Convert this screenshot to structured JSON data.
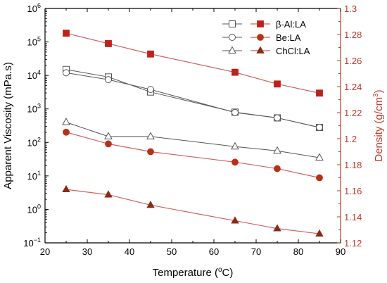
{
  "chart_data": {
    "type": "line",
    "xlabel": "Temperature (",
    "xlabel_sup": "o",
    "xlabel_tail": "C)",
    "ylabel_left": "Apparent Viscosity (mPa.s)",
    "ylabel_right_main": "Density (g/cm",
    "ylabel_right_sup": "3",
    "ylabel_right_tail": ")",
    "xlim": [
      20,
      90
    ],
    "x_ticks": [
      "20",
      "30",
      "40",
      "50",
      "60",
      "70",
      "80",
      "90"
    ],
    "ylim_left_log10": [
      -1,
      6
    ],
    "y_scale_left": "log",
    "y_ticks_left": [
      {
        "base": "10",
        "exp": "−1"
      },
      {
        "base": "10",
        "exp": "0"
      },
      {
        "base": "10",
        "exp": "1"
      },
      {
        "base": "10",
        "exp": "2"
      },
      {
        "base": "10",
        "exp": "3"
      },
      {
        "base": "10",
        "exp": "4"
      },
      {
        "base": "10",
        "exp": "5"
      },
      {
        "base": "10",
        "exp": "6"
      }
    ],
    "ylim_right": [
      1.12,
      1.3
    ],
    "y_ticks_right": [
      "1.12",
      "1.14",
      "1.16",
      "1.18",
      "1.2",
      "1.22",
      "1.24",
      "1.26",
      "1.28",
      "1.3"
    ],
    "grid": false,
    "legend_position": "top-right",
    "x": [
      25,
      35,
      45,
      65,
      75,
      85
    ],
    "viscosity_series": [
      {
        "name_ref": 0,
        "marker": "square",
        "values": [
          15000,
          9000,
          3200,
          800,
          540,
          280
        ]
      },
      {
        "name_ref": 1,
        "marker": "circle",
        "values": [
          12000,
          7500,
          3800,
          780,
          540,
          280
        ]
      },
      {
        "name_ref": 2,
        "marker": "triangle",
        "values": [
          400,
          150,
          150,
          75,
          56,
          35
        ]
      }
    ],
    "density_series": [
      {
        "name_ref": 0,
        "marker": "square",
        "values": [
          1.281,
          1.273,
          1.265,
          1.251,
          1.242,
          1.235
        ]
      },
      {
        "name_ref": 1,
        "marker": "circle",
        "values": [
          1.205,
          1.196,
          1.19,
          1.182,
          1.177,
          1.17
        ]
      },
      {
        "name_ref": 2,
        "marker": "triangle",
        "values": [
          1.161,
          1.157,
          1.149,
          1.137,
          1.131,
          1.127
        ]
      }
    ],
    "legend": [
      {
        "label": "β-Al:LA",
        "marker": "square"
      },
      {
        "label": "Be:LA",
        "marker": "circle"
      },
      {
        "label": "ChCl:LA",
        "marker": "triangle"
      }
    ],
    "colors": {
      "viscosity_line": "#555555",
      "density_line": "#d06060",
      "square_fill": "#c0201a",
      "circle_fill": "#b83018",
      "triangle_fill": "#8a2a14",
      "right_axis": "#c0392b"
    }
  }
}
